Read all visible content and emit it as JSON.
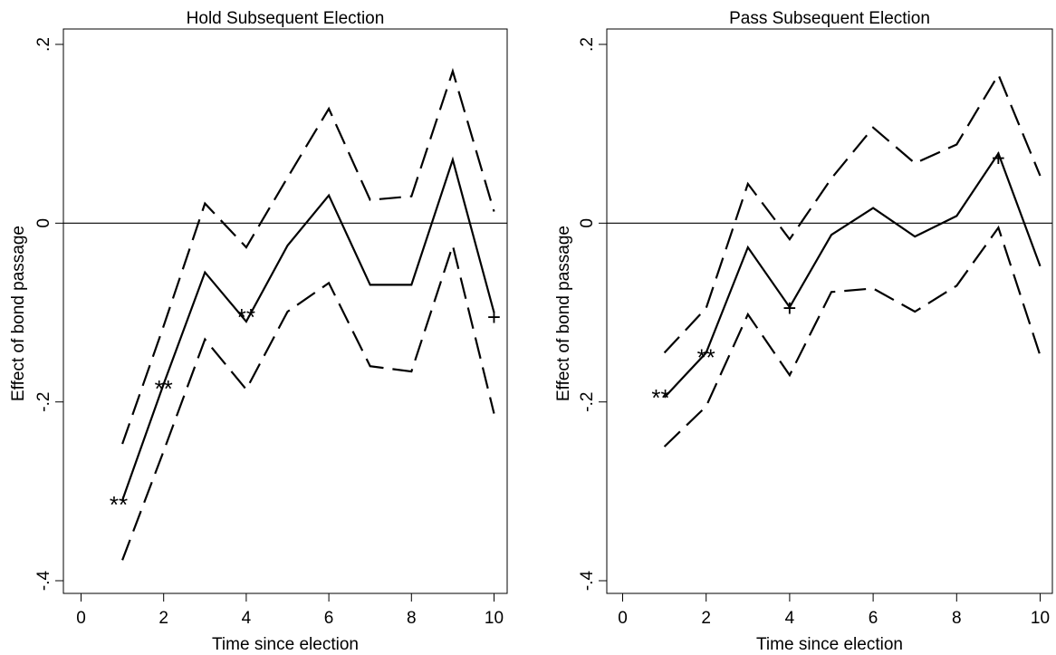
{
  "chart_data": [
    {
      "type": "line",
      "title": "Hold Subsequent Election",
      "xlabel": "Time since election",
      "ylabel": "Effect of bond passage",
      "xlim": [
        0,
        10
      ],
      "ylim": [
        -0.4,
        0.2
      ],
      "x_ticks": [
        0,
        2,
        4,
        6,
        8,
        10
      ],
      "x_tick_labels": [
        "0",
        "2",
        "4",
        "6",
        "8",
        "10"
      ],
      "y_ticks": [
        -0.4,
        -0.2,
        0,
        0.2
      ],
      "y_tick_labels": [
        "-.4",
        "-.2",
        "0",
        ".2"
      ],
      "reference_line_y": 0,
      "grid": false,
      "x": [
        1,
        2,
        3,
        4,
        5,
        6,
        7,
        8,
        9,
        10
      ],
      "series": [
        {
          "role": "estimate",
          "style": "solid",
          "values": [
            -0.31,
            -0.18,
            -0.055,
            -0.11,
            -0.025,
            0.031,
            -0.069,
            -0.069,
            0.071,
            -0.1
          ]
        },
        {
          "role": "upper",
          "style": "dashed",
          "values": [
            -0.247,
            -0.115,
            0.022,
            -0.027,
            0.051,
            0.128,
            0.026,
            0.03,
            0.17,
            0.013
          ]
        },
        {
          "role": "lower",
          "style": "dashed",
          "values": [
            -0.377,
            -0.255,
            -0.13,
            -0.186,
            -0.099,
            -0.067,
            -0.16,
            -0.166,
            -0.025,
            -0.213
          ]
        }
      ],
      "markers": [
        {
          "x": 1,
          "y": -0.31,
          "label": "**",
          "anchor": "end"
        },
        {
          "x": 2,
          "y": -0.18,
          "label": "**",
          "anchor": "middle"
        },
        {
          "x": 4,
          "y": -0.1,
          "label": "**",
          "anchor": "middle"
        },
        {
          "x": 10,
          "y": -0.1,
          "label": "+",
          "anchor": "middle"
        }
      ]
    },
    {
      "type": "line",
      "title": "Pass Subsequent Election",
      "xlabel": "Time since election",
      "ylabel": "Effect of bond passage",
      "xlim": [
        0,
        10
      ],
      "ylim": [
        -0.4,
        0.2
      ],
      "x_ticks": [
        0,
        2,
        4,
        6,
        8,
        10
      ],
      "x_tick_labels": [
        "0",
        "2",
        "4",
        "6",
        "8",
        "10"
      ],
      "y_ticks": [
        -0.4,
        -0.2,
        0,
        0.2
      ],
      "y_tick_labels": [
        "-.4",
        "-.2",
        "0",
        ".2"
      ],
      "reference_line_y": 0,
      "grid": false,
      "x": [
        1,
        2,
        3,
        4,
        5,
        6,
        7,
        8,
        9,
        10
      ],
      "series": [
        {
          "role": "estimate",
          "style": "solid",
          "values": [
            -0.195,
            -0.145,
            -0.027,
            -0.094,
            -0.013,
            0.017,
            -0.015,
            0.008,
            0.078,
            -0.048
          ]
        },
        {
          "role": "upper",
          "style": "dashed",
          "values": [
            -0.145,
            -0.095,
            0.044,
            -0.018,
            0.05,
            0.107,
            0.067,
            0.088,
            0.166,
            0.053
          ]
        },
        {
          "role": "lower",
          "style": "dashed",
          "values": [
            -0.25,
            -0.205,
            -0.102,
            -0.17,
            -0.077,
            -0.073,
            -0.099,
            -0.07,
            -0.005,
            -0.148
          ]
        }
      ],
      "markers": [
        {
          "x": 1,
          "y": -0.19,
          "label": "**",
          "anchor": "end"
        },
        {
          "x": 2,
          "y": -0.145,
          "label": "**",
          "anchor": "middle"
        },
        {
          "x": 4,
          "y": -0.09,
          "label": "+",
          "anchor": "middle"
        },
        {
          "x": 9,
          "y": 0.078,
          "label": "+",
          "anchor": "middle"
        }
      ]
    }
  ]
}
